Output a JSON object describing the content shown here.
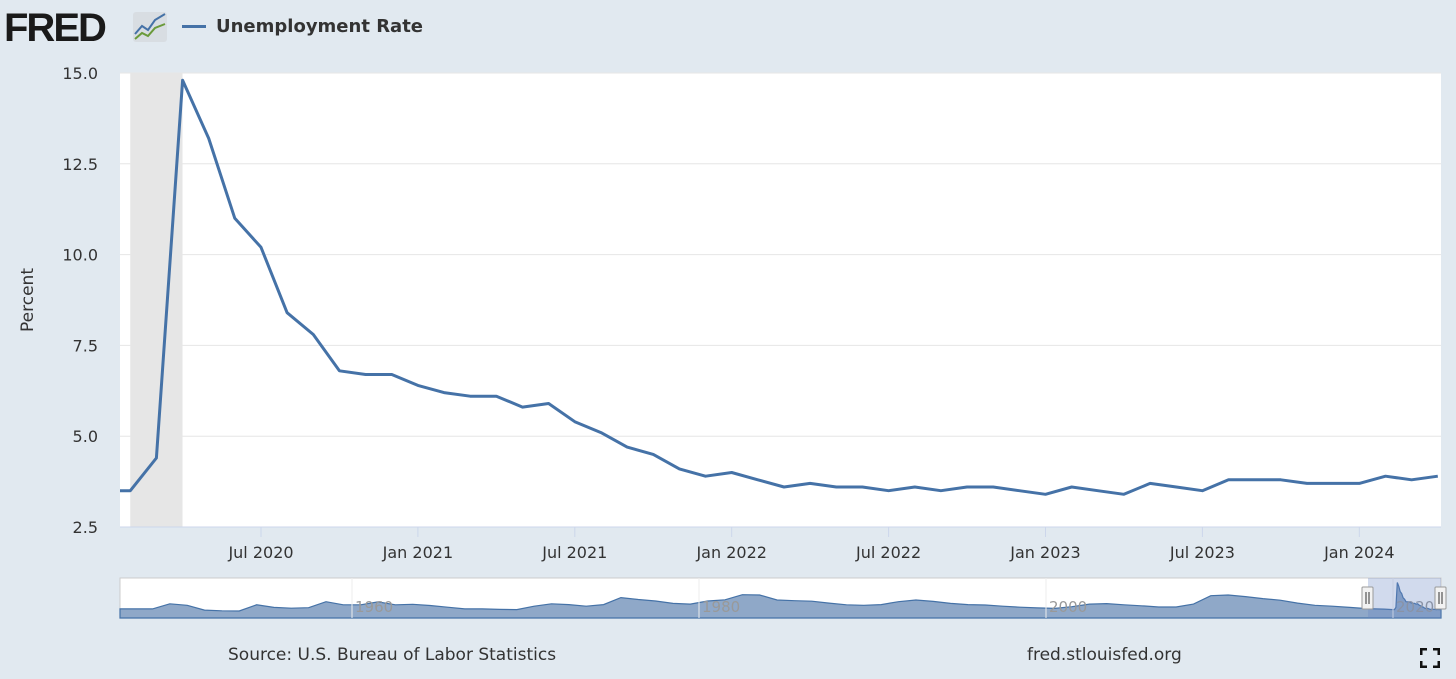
{
  "logo": "FRED",
  "chart_data": {
    "type": "line",
    "title": "",
    "legend": [
      {
        "name": "Unemployment Rate",
        "color": "#4572a7"
      }
    ],
    "ylabel": "Percent",
    "ylim": [
      2.5,
      15.0
    ],
    "yticks": [
      "15.0",
      "12.5",
      "10.0",
      "7.5",
      "5.0",
      "2.5"
    ],
    "xticks": [
      "Jul 2020",
      "Jan 2021",
      "Jul 2021",
      "Jan 2022",
      "Jul 2022",
      "Jan 2023",
      "Jul 2023",
      "Jan 2024"
    ],
    "grid": true,
    "recession_shading": [
      "2020-02",
      "2020-04"
    ],
    "series": [
      {
        "name": "Unemployment Rate",
        "start": "2020-01",
        "frequency": "monthly",
        "values": [
          3.5,
          3.5,
          4.4,
          14.8,
          13.2,
          11.0,
          10.2,
          8.4,
          7.8,
          6.8,
          6.7,
          6.7,
          6.4,
          6.2,
          6.1,
          6.1,
          5.8,
          5.9,
          5.4,
          5.1,
          4.7,
          4.5,
          4.1,
          3.9,
          4.0,
          3.8,
          3.6,
          3.7,
          3.6,
          3.6,
          3.5,
          3.6,
          3.5,
          3.6,
          3.6,
          3.5,
          3.4,
          3.6,
          3.5,
          3.4,
          3.7,
          3.6,
          3.5,
          3.8,
          3.8,
          3.8,
          3.7,
          3.7,
          3.7,
          3.9,
          3.8,
          3.9
        ]
      }
    ],
    "navigator": {
      "labels": [
        "1960",
        "1980",
        "2000",
        "2020"
      ],
      "start_year": 1948,
      "annual_values": [
        3.8,
        5.9,
        5.3,
        3.3,
        3.0,
        2.9,
        5.5,
        4.4,
        4.1,
        4.3,
        6.8,
        5.5,
        5.5,
        6.7,
        5.5,
        5.7,
        5.2,
        4.5,
        3.8,
        3.8,
        3.6,
        3.5,
        4.9,
        5.9,
        5.6,
        4.9,
        5.6,
        8.5,
        7.7,
        7.1,
        6.1,
        5.8,
        7.1,
        7.6,
        9.7,
        9.6,
        7.5,
        7.2,
        7.0,
        6.2,
        5.5,
        5.3,
        5.6,
        6.8,
        7.5,
        6.9,
        6.1,
        5.6,
        5.4,
        4.9,
        4.5,
        4.2,
        4.0,
        4.7,
        5.8,
        6.0,
        5.5,
        5.1,
        4.6,
        4.6,
        5.8,
        9.3,
        9.6,
        8.9,
        8.1,
        7.4,
        6.2,
        5.3,
        4.9,
        4.4,
        3.9,
        3.7
      ]
    }
  },
  "footer": {
    "source": "Source: U.S. Bureau of Labor Statistics",
    "site": "fred.stlouisfed.org"
  }
}
